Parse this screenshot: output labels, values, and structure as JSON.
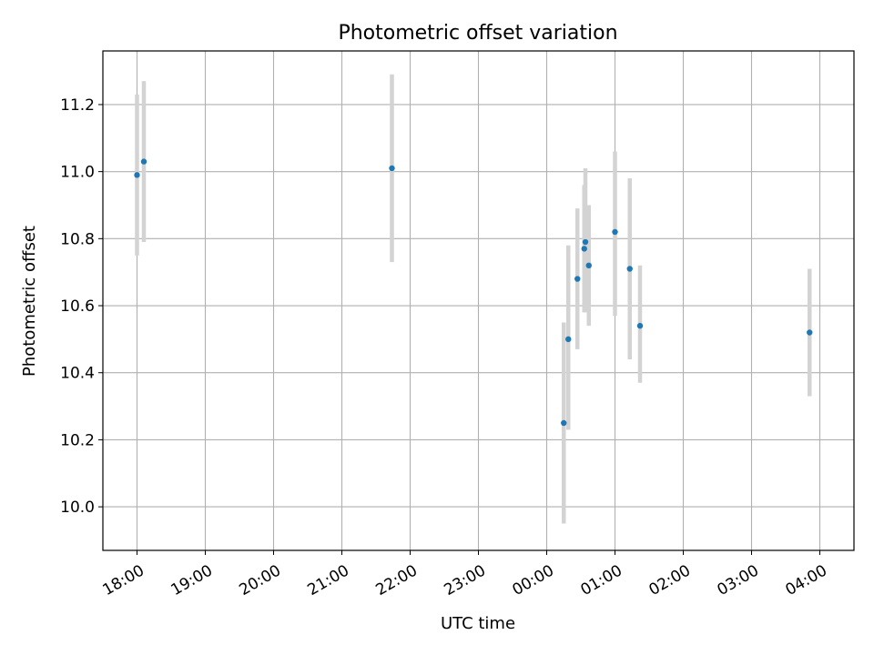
{
  "chart_data": {
    "type": "scatter",
    "title": "Photometric offset variation",
    "xlabel": "UTC time",
    "ylabel": "Photometric offset",
    "x_unit": "hours",
    "xlim": [
      "17:30",
      "04:30"
    ],
    "ylim": [
      9.87,
      11.36
    ],
    "x_ticks": [
      "18:00",
      "19:00",
      "20:00",
      "21:00",
      "22:00",
      "23:00",
      "00:00",
      "01:00",
      "02:00",
      "03:00",
      "04:00"
    ],
    "y_ticks": [
      "10.0",
      "10.2",
      "10.4",
      "10.6",
      "10.8",
      "11.0",
      "11.2"
    ],
    "grid": true,
    "colors": {
      "point": "#1f77b4",
      "errorbar": "#d3d3d3",
      "grid": "#b0b0b0"
    },
    "points": [
      {
        "time": "18:00",
        "y": 10.99,
        "err_low": 10.75,
        "err_high": 11.23
      },
      {
        "time": "18:06",
        "y": 11.03,
        "err_low": 10.79,
        "err_high": 11.27
      },
      {
        "time": "21:44",
        "y": 11.01,
        "err_low": 10.73,
        "err_high": 11.29
      },
      {
        "time": "00:15",
        "y": 10.25,
        "err_low": 9.95,
        "err_high": 10.55
      },
      {
        "time": "00:19",
        "y": 10.5,
        "err_low": 10.23,
        "err_high": 10.78
      },
      {
        "time": "00:27",
        "y": 10.68,
        "err_low": 10.47,
        "err_high": 10.89
      },
      {
        "time": "00:33",
        "y": 10.77,
        "err_low": 10.58,
        "err_high": 10.96
      },
      {
        "time": "00:34",
        "y": 10.79,
        "err_low": 10.58,
        "err_high": 11.01
      },
      {
        "time": "00:37",
        "y": 10.72,
        "err_low": 10.54,
        "err_high": 10.9
      },
      {
        "time": "01:00",
        "y": 10.82,
        "err_low": 10.57,
        "err_high": 11.06
      },
      {
        "time": "01:13",
        "y": 10.71,
        "err_low": 10.44,
        "err_high": 10.98
      },
      {
        "time": "01:22",
        "y": 10.54,
        "err_low": 10.37,
        "err_high": 10.72
      },
      {
        "time": "03:51",
        "y": 10.52,
        "err_low": 10.33,
        "err_high": 10.71
      }
    ]
  }
}
